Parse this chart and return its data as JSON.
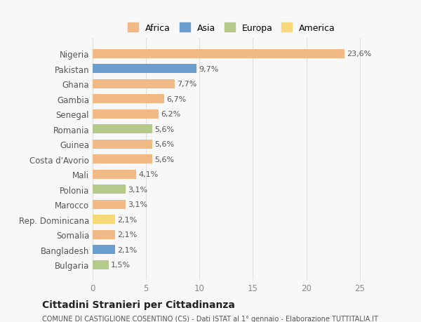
{
  "categories": [
    "Nigeria",
    "Pakistan",
    "Ghana",
    "Gambia",
    "Senegal",
    "Romania",
    "Guinea",
    "Costa d'Avorio",
    "Mali",
    "Polonia",
    "Marocco",
    "Rep. Dominicana",
    "Somalia",
    "Bangladesh",
    "Bulgaria"
  ],
  "values": [
    23.6,
    9.7,
    7.7,
    6.7,
    6.2,
    5.6,
    5.6,
    5.6,
    4.1,
    3.1,
    3.1,
    2.1,
    2.1,
    2.1,
    1.5
  ],
  "labels": [
    "23,6%",
    "9,7%",
    "7,7%",
    "6,7%",
    "6,2%",
    "5,6%",
    "5,6%",
    "5,6%",
    "4,1%",
    "3,1%",
    "3,1%",
    "2,1%",
    "2,1%",
    "2,1%",
    "1,5%"
  ],
  "colors": [
    "#f0b985",
    "#6a9ecf",
    "#f0b985",
    "#f0b985",
    "#f0b985",
    "#b5c98a",
    "#f0b985",
    "#f0b985",
    "#f0b985",
    "#b5c98a",
    "#f0b985",
    "#f7d97a",
    "#f0b985",
    "#6a9ecf",
    "#b5c98a"
  ],
  "legend_labels": [
    "Africa",
    "Asia",
    "Europa",
    "America"
  ],
  "legend_colors": [
    "#f0b985",
    "#6a9ecf",
    "#b5c98a",
    "#f7d97a"
  ],
  "xlim": [
    0,
    26
  ],
  "xticks": [
    0,
    5,
    10,
    15,
    20,
    25
  ],
  "title": "Cittadini Stranieri per Cittadinanza",
  "subtitle": "COMUNE DI CASTIGLIONE COSENTINO (CS) - Dati ISTAT al 1° gennaio - Elaborazione TUTTITALIA.IT",
  "background_color": "#f8f8f8",
  "grid_color": "#e0e0e0"
}
